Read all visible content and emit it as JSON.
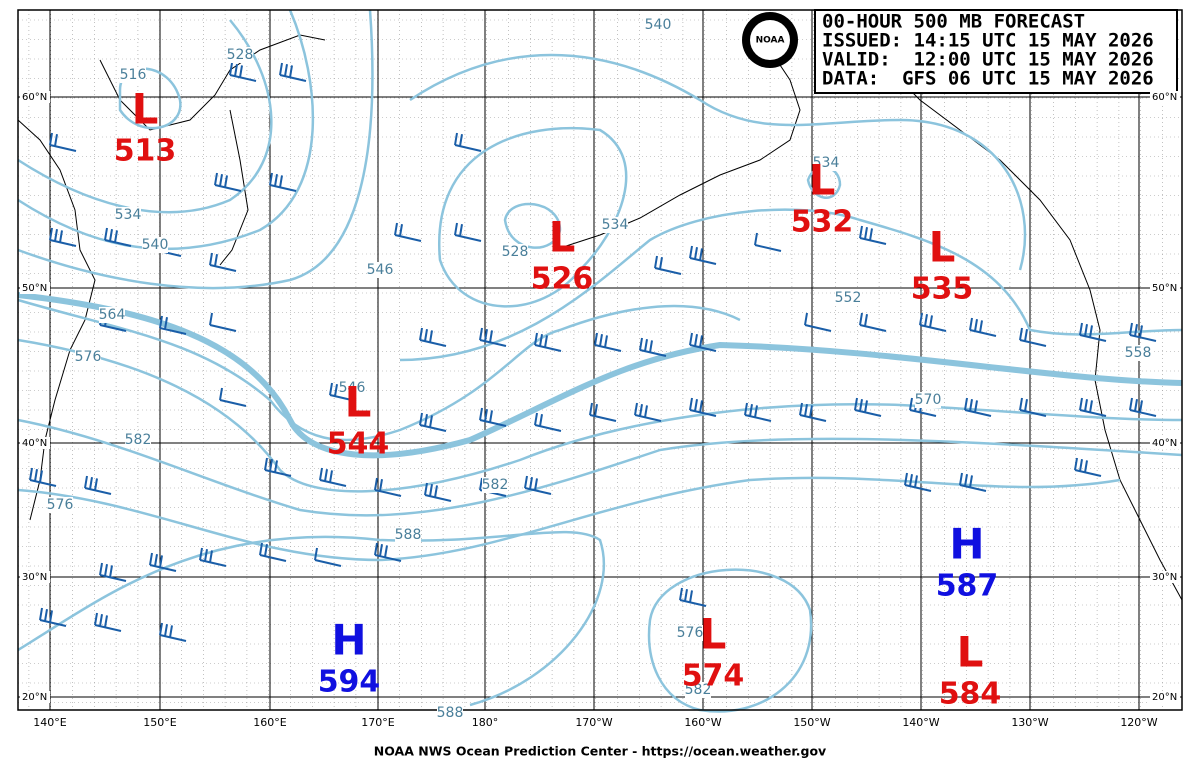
{
  "header": {
    "logo": "NOAA",
    "lines": [
      "00-HOUR 500 MB FORECAST",
      "ISSUED: 14:15 UTC 15 MAY 2026",
      "VALID:  12:00 UTC 15 MAY 2026",
      "DATA:  GFS 06 UTC 15 MAY 2026"
    ]
  },
  "latitudes": [
    "60°N",
    "50°N",
    "40°N",
    "30°N",
    "20°N"
  ],
  "longitudes": [
    "140°E",
    "150°E",
    "160°E",
    "170°E",
    "180°",
    "170°W",
    "160°W",
    "150°W",
    "140°W",
    "130°W",
    "120°W"
  ],
  "centers": [
    {
      "label": "L",
      "value": 513
    },
    {
      "label": "L",
      "value": 526
    },
    {
      "label": "L",
      "value": 532
    },
    {
      "label": "L",
      "value": 535
    },
    {
      "label": "L",
      "value": 544
    },
    {
      "label": "L",
      "value": 574
    },
    {
      "label": "L",
      "value": 584
    },
    {
      "label": "H",
      "value": 587
    },
    {
      "label": "H",
      "value": 594
    }
  ],
  "contour_labels": [
    516,
    528,
    540,
    534,
    540,
    564,
    576,
    582,
    576,
    546,
    546,
    528,
    534,
    552,
    534,
    558,
    570,
    582,
    588,
    588,
    576,
    582
  ],
  "footer": "NOAA NWS Ocean Prediction Center - https://ocean.weather.gov"
}
